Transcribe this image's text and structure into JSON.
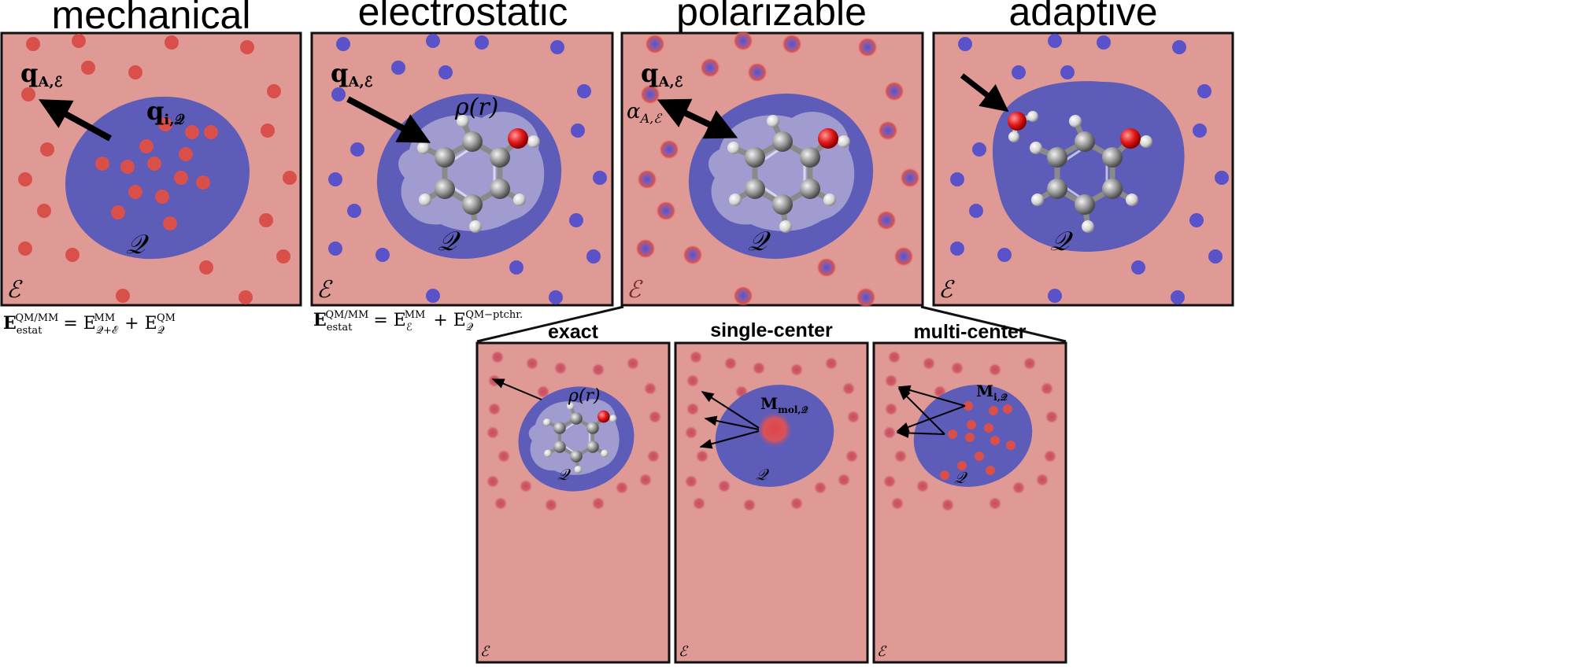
{
  "titles": {
    "mechanical": "mechanical",
    "electrostatic": "electrostatic",
    "polarizable": "polarizable",
    "adaptive": "adaptive"
  },
  "subtitles": {
    "exact": "exact",
    "single_center": "single-center",
    "multi_center": "multi-center"
  },
  "symbols": {
    "env": "ℰ",
    "qm_region": "𝒬",
    "env_sub": "𝒜,ℰ",
    "q_main": "q",
    "q_env_sub": "A,ℰ",
    "q_inner_sub": "i,𝒬",
    "rho": "ρ(r)",
    "alpha": "α",
    "alpha_sub": "A,ℰ",
    "m_mol": "M",
    "m_mol_sub": "mol,𝒬",
    "m_i": "M",
    "m_i_sub": "i,𝒬"
  },
  "equations": {
    "mechanical": {
      "lhs": "E",
      "lhs_sub": "estat",
      "lhs_sup": "QM/MM",
      "rhs1": "= E",
      "rhs1_sub": "𝒬+ℰ",
      "rhs1_sup": "MM",
      "rhs2": "+ E",
      "rhs2_sub": "𝒬",
      "rhs2_sup": "QM"
    },
    "electrostatic": {
      "lhs": "E",
      "lhs_sub": "estat",
      "lhs_sup": "QM/MM",
      "rhs1": "= E",
      "rhs1_sub": "ℰ",
      "rhs1_sup": "MM",
      "rhs2": "+ E",
      "rhs2_sub": "𝒬",
      "rhs2_sup": "QM−ptchr."
    }
  },
  "colors": {
    "env_bg": "#e09a96",
    "qm_blue": "#5d5cb8",
    "red_particle": "#d9504a",
    "blue_particle": "#5a52c8",
    "border": "#111111",
    "cloud": "#b7b2d8"
  }
}
